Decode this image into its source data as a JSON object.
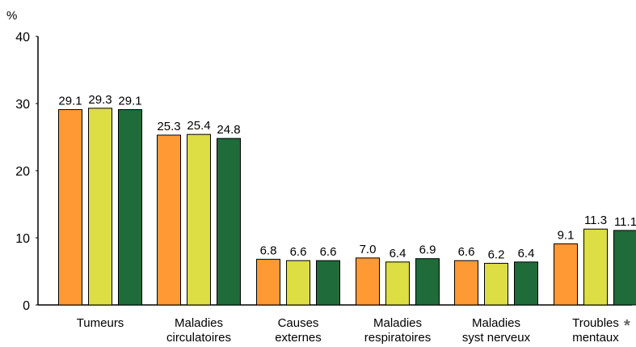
{
  "chart_data": {
    "type": "bar",
    "ylabel": "%",
    "ylim": [
      0,
      40
    ],
    "y_ticks": [
      "0",
      "10",
      "20",
      "30",
      "40"
    ],
    "grid": false,
    "categories": [
      [
        "Tumeurs"
      ],
      [
        "Maladies",
        "circulatoires"
      ],
      [
        "Causes",
        "externes"
      ],
      [
        "Maladies",
        "respiratoires"
      ],
      [
        "Maladies",
        "syst nerveux"
      ],
      [
        "Troubles",
        "mentaux"
      ]
    ],
    "annotation": "*",
    "series": [
      {
        "color": "#FF9933",
        "values": [
          29.1,
          25.3,
          6.8,
          7.0,
          6.6,
          9.1
        ],
        "labels": [
          "29.1",
          "25.3",
          "6.8",
          "7.0",
          "6.6",
          "9.1"
        ]
      },
      {
        "color": "#DDDD44",
        "values": [
          29.3,
          25.4,
          6.6,
          6.4,
          6.2,
          11.3
        ],
        "labels": [
          "29.3",
          "25.4",
          "6.6",
          "6.4",
          "6.2",
          "11.3"
        ]
      },
      {
        "color": "#1F6B3A",
        "values": [
          29.1,
          24.8,
          6.6,
          6.9,
          6.4,
          11.1
        ],
        "labels": [
          "29.1",
          "24.8",
          "6.6",
          "6.9",
          "6.4",
          "11.1"
        ]
      }
    ]
  }
}
